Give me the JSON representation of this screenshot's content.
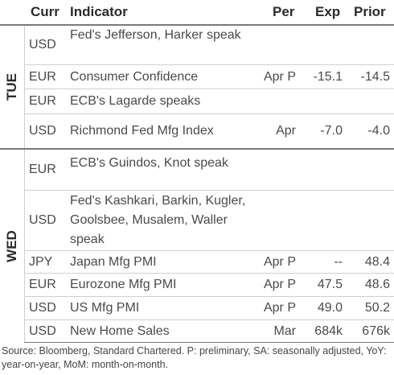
{
  "header": {
    "curr": "Curr",
    "indicator": "Indicator",
    "per": "Per",
    "exp": "Exp",
    "prior": "Prior"
  },
  "days": [
    "TUE",
    "WED"
  ],
  "rows": [
    {
      "curr": "USD",
      "indicator": "Fed's Jefferson, Harker speak",
      "per": "",
      "exp": "",
      "prior": ""
    },
    {
      "curr": "EUR",
      "indicator": "Consumer Confidence",
      "per": "Apr P",
      "exp": "-15.1",
      "prior": "-14.5"
    },
    {
      "curr": "EUR",
      "indicator": "ECB's Lagarde speaks",
      "per": "",
      "exp": "",
      "prior": ""
    },
    {
      "curr": "USD",
      "indicator": "Richmond Fed Mfg Index",
      "per": "Apr",
      "exp": "-7.0",
      "prior": "-4.0"
    },
    {
      "curr": "EUR",
      "indicator": "ECB's Guindos, Knot speak",
      "per": "",
      "exp": "",
      "prior": ""
    },
    {
      "curr": "USD",
      "indicator": "Fed's Kashkari, Barkin, Kugler, Goolsbee, Musalem, Waller speak",
      "per": "",
      "exp": "",
      "prior": ""
    },
    {
      "curr": "JPY",
      "indicator": "Japan Mfg PMI",
      "per": "Apr P",
      "exp": "--",
      "prior": "48.4"
    },
    {
      "curr": "EUR",
      "indicator": "Eurozone Mfg PMI",
      "per": "Apr P",
      "exp": "47.5",
      "prior": "48.6"
    },
    {
      "curr": "USD",
      "indicator": "US Mfg PMI",
      "per": "Apr P",
      "exp": "49.0",
      "prior": "50.2"
    },
    {
      "curr": "USD",
      "indicator": "New Home Sales",
      "per": "Mar",
      "exp": "684k",
      "prior": "676k"
    }
  ],
  "footer": "Source: Bloomberg, Standard Chartered. P: preliminary, SA: seasonally adjusted, YoY: year-on-year, MoM: month-on-month."
}
